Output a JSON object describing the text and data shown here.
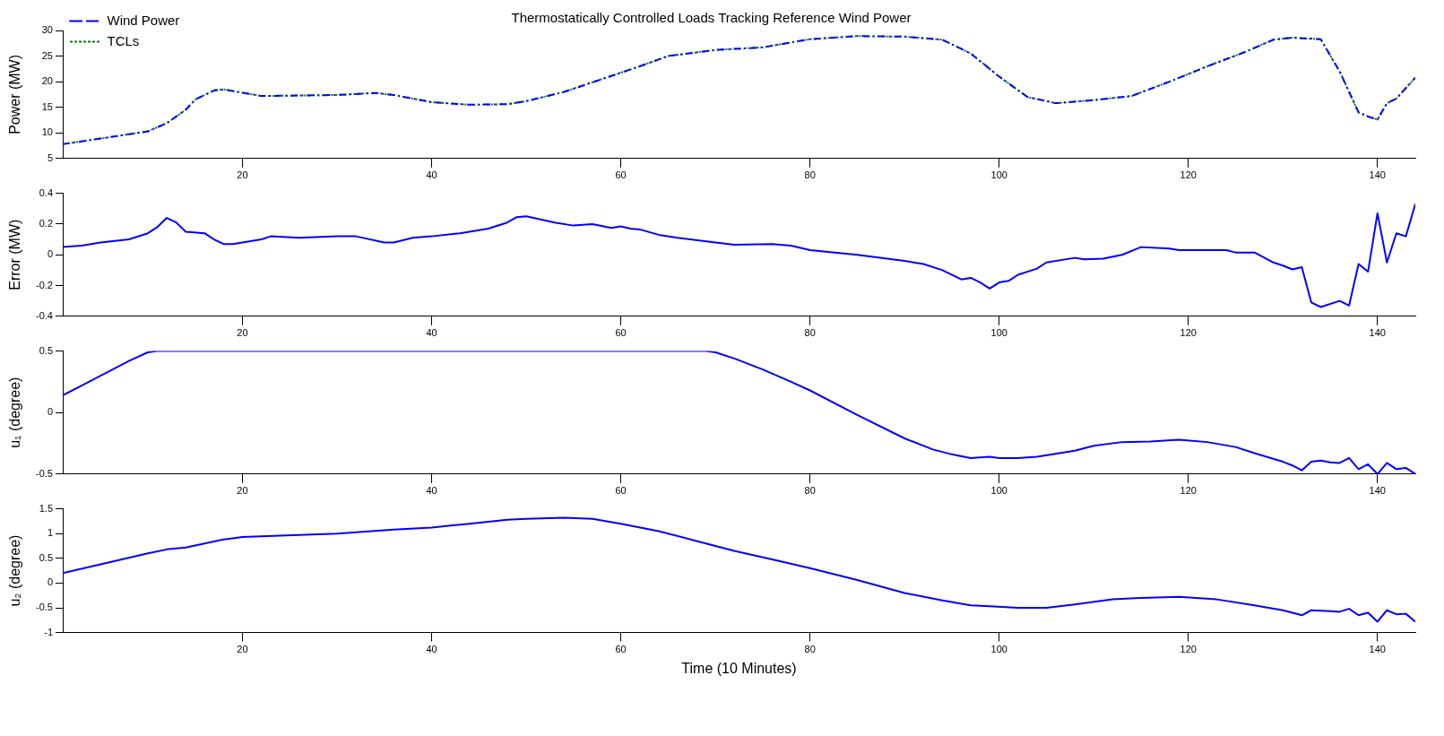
{
  "chart_data": [
    {
      "type": "line",
      "title": "Thermostatically Controlled Loads Tracking Reference Wind Power",
      "ylabel": "Power (MW)",
      "xlim": [
        1,
        144
      ],
      "xticks": [
        20,
        40,
        60,
        80,
        100,
        120,
        140
      ],
      "ylim": [
        5,
        30
      ],
      "yticks": [
        5,
        10,
        15,
        20,
        25,
        30
      ],
      "legend": "top left",
      "x": [
        1,
        5,
        10,
        12,
        14,
        15,
        17,
        18,
        22,
        26,
        30,
        34,
        36,
        40,
        44,
        48,
        50,
        54,
        58,
        62,
        65,
        70,
        75,
        80,
        85,
        90,
        94,
        97,
        100,
        103,
        106,
        110,
        114,
        118,
        122,
        126,
        129,
        131,
        134,
        136,
        138,
        139,
        140,
        141,
        142,
        144
      ],
      "series": [
        {
          "name": "Wind Power",
          "color": "#0000ff",
          "line_style": "dashed",
          "values": [
            7.8,
            8.9,
            10.3,
            11.9,
            14.5,
            16.5,
            18.3,
            18.5,
            17.2,
            17.3,
            17.4,
            17.8,
            17.4,
            16.0,
            15.5,
            15.6,
            16.2,
            18.0,
            20.5,
            23.0,
            25.0,
            26.2,
            26.7,
            28.3,
            28.9,
            28.8,
            28.2,
            25.5,
            21.0,
            17.0,
            15.8,
            16.4,
            17.2,
            20.0,
            23.0,
            25.8,
            28.2,
            28.6,
            28.3,
            22.0,
            14.0,
            13.2,
            12.6,
            15.8,
            16.7,
            20.8
          ]
        },
        {
          "name": "TCLs",
          "color": "#008000",
          "line_style": "dotted",
          "values": [
            7.8,
            8.9,
            10.3,
            11.9,
            14.5,
            16.5,
            18.3,
            18.5,
            17.2,
            17.3,
            17.4,
            17.8,
            17.4,
            16.0,
            15.5,
            15.6,
            16.2,
            18.0,
            20.5,
            23.0,
            25.0,
            26.2,
            26.7,
            28.3,
            28.9,
            28.8,
            28.2,
            25.5,
            21.0,
            17.0,
            15.8,
            16.4,
            17.2,
            20.0,
            23.0,
            25.8,
            28.2,
            28.6,
            28.3,
            22.0,
            14.0,
            13.2,
            12.6,
            15.8,
            16.7,
            20.8
          ]
        }
      ]
    },
    {
      "type": "line",
      "ylabel": "Error (MW)",
      "xlim": [
        1,
        144
      ],
      "xticks": [
        20,
        40,
        60,
        80,
        100,
        120,
        140
      ],
      "ylim": [
        -0.4,
        0.4
      ],
      "yticks": [
        -0.4,
        -0.2,
        0,
        0.2,
        0.4
      ],
      "x": [
        1,
        3,
        5,
        8,
        10,
        11,
        12,
        13,
        14,
        16,
        17,
        18,
        19,
        22,
        23,
        26,
        30,
        32,
        35,
        36,
        38,
        40,
        43,
        46,
        48,
        49,
        50,
        53,
        55,
        57,
        59,
        60,
        61,
        62,
        64,
        66,
        70,
        72,
        76,
        78,
        80,
        85,
        90,
        92,
        94,
        96,
        97,
        98,
        99,
        100,
        101,
        102,
        104,
        105,
        108,
        109,
        111,
        113,
        115,
        118,
        119,
        123,
        124,
        125,
        127,
        129,
        130,
        131,
        132,
        133,
        134,
        136,
        137,
        138,
        139,
        140,
        141,
        142,
        143,
        144
      ],
      "series": [
        {
          "color": "#0000ff",
          "values": [
            0.05,
            0.06,
            0.08,
            0.1,
            0.14,
            0.18,
            0.24,
            0.21,
            0.15,
            0.14,
            0.1,
            0.07,
            0.07,
            0.1,
            0.12,
            0.11,
            0.12,
            0.12,
            0.08,
            0.08,
            0.11,
            0.12,
            0.14,
            0.17,
            0.21,
            0.245,
            0.25,
            0.21,
            0.19,
            0.2,
            0.175,
            0.185,
            0.17,
            0.165,
            0.13,
            0.11,
            0.08,
            0.065,
            0.07,
            0.06,
            0.03,
            0.0,
            -0.04,
            -0.06,
            -0.1,
            -0.16,
            -0.15,
            -0.18,
            -0.22,
            -0.18,
            -0.17,
            -0.13,
            -0.09,
            -0.05,
            -0.02,
            -0.03,
            -0.025,
            0.0,
            0.05,
            0.04,
            0.03,
            0.03,
            0.03,
            0.015,
            0.015,
            -0.05,
            -0.07,
            -0.095,
            -0.08,
            -0.31,
            -0.34,
            -0.3,
            -0.33,
            -0.06,
            -0.11,
            0.27,
            -0.05,
            0.14,
            0.12,
            0.33
          ]
        }
      ]
    },
    {
      "type": "line",
      "ylabel": "u₁ (degree)",
      "xlim": [
        1,
        144
      ],
      "xticks": [
        20,
        40,
        60,
        80,
        100,
        120,
        140
      ],
      "ylim": [
        -0.5,
        0.5
      ],
      "yticks": [
        -0.5,
        0,
        0.5
      ],
      "x": [
        1,
        3,
        5,
        8,
        10,
        11,
        69,
        70,
        72,
        75,
        78,
        80,
        85,
        90,
        93,
        95,
        97,
        99,
        100,
        102,
        104,
        108,
        110,
        113,
        116,
        119,
        122,
        125,
        127,
        130,
        131,
        132,
        133,
        134,
        135,
        136,
        137,
        138,
        139,
        140,
        141,
        142,
        143,
        144
      ],
      "series": [
        {
          "color": "#0000ff",
          "values": [
            0.14,
            0.22,
            0.3,
            0.42,
            0.49,
            0.5,
            0.5,
            0.49,
            0.44,
            0.35,
            0.25,
            0.18,
            -0.02,
            -0.21,
            -0.3,
            -0.34,
            -0.37,
            -0.36,
            -0.37,
            -0.37,
            -0.36,
            -0.31,
            -0.27,
            -0.24,
            -0.235,
            -0.22,
            -0.24,
            -0.28,
            -0.33,
            -0.4,
            -0.43,
            -0.47,
            -0.4,
            -0.39,
            -0.405,
            -0.41,
            -0.37,
            -0.46,
            -0.42,
            -0.5,
            -0.41,
            -0.46,
            -0.45,
            -0.5
          ]
        }
      ]
    },
    {
      "type": "line",
      "xlabel": "Time (10 Minutes)",
      "ylabel": "u₂ (degree)",
      "xlim": [
        1,
        144
      ],
      "xticks": [
        20,
        40,
        60,
        80,
        100,
        120,
        140
      ],
      "ylim": [
        -1,
        1.5
      ],
      "yticks": [
        -1,
        -0.5,
        0,
        0.5,
        1,
        1.5
      ],
      "x": [
        1,
        5,
        10,
        12,
        14,
        16,
        18,
        20,
        24,
        30,
        36,
        40,
        44,
        48,
        50,
        54,
        57,
        60,
        64,
        68,
        72,
        76,
        80,
        85,
        90,
        94,
        97,
        99,
        102,
        105,
        108,
        112,
        115,
        119,
        123,
        127,
        130,
        132,
        133,
        135,
        136,
        137,
        138,
        139,
        140,
        141,
        142,
        143,
        144
      ],
      "series": [
        {
          "color": "#0000ff",
          "values": [
            0.2,
            0.38,
            0.6,
            0.68,
            0.72,
            0.8,
            0.88,
            0.93,
            0.96,
            1.0,
            1.08,
            1.12,
            1.2,
            1.28,
            1.3,
            1.32,
            1.3,
            1.2,
            1.05,
            0.85,
            0.65,
            0.48,
            0.3,
            0.06,
            -0.2,
            -0.35,
            -0.45,
            -0.47,
            -0.5,
            -0.5,
            -0.43,
            -0.33,
            -0.3,
            -0.28,
            -0.33,
            -0.45,
            -0.55,
            -0.65,
            -0.55,
            -0.57,
            -0.58,
            -0.52,
            -0.65,
            -0.6,
            -0.78,
            -0.55,
            -0.63,
            -0.62,
            -0.78
          ]
        }
      ]
    }
  ]
}
